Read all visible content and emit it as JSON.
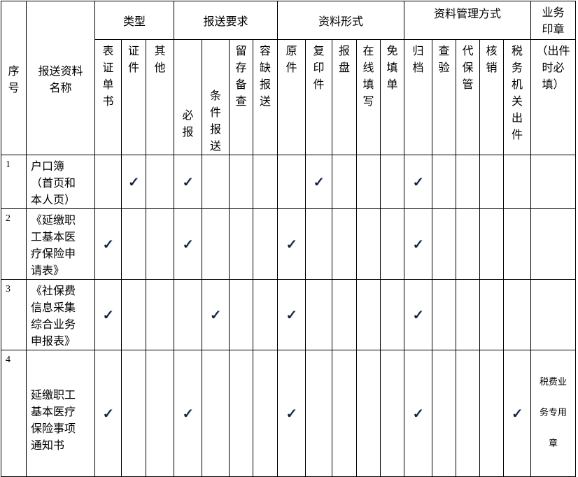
{
  "header": {
    "seq": "序号",
    "name": "报送资料名称",
    "groups": [
      "类型",
      "报送要求",
      "资料形式",
      "资料管理方式"
    ],
    "seal": "业务印章",
    "seal_note": "（出件时必填）",
    "columns": [
      "表证单书",
      "证件",
      "其他",
      "必报",
      "条件报送",
      "留存备查",
      "容缺报送",
      "原件",
      "复印件",
      "报盘",
      "在线填写",
      "免填单",
      "归档",
      "查验",
      "代保管",
      "核销",
      "税务机关出件"
    ]
  },
  "check_mark": "✓",
  "rows": [
    {
      "seq": "1",
      "name": "户口簿\n（首页和\n本人页）",
      "checks": [
        1,
        3,
        8,
        12
      ],
      "seal": ""
    },
    {
      "seq": "2",
      "name": "《延缴职\n工基本医\n疗保险申\n请表》",
      "checks": [
        0,
        3,
        7,
        12
      ],
      "seal": ""
    },
    {
      "seq": "3",
      "name": "《社保费\n信息采集\n综合业务\n申报表》",
      "checks": [
        0,
        4,
        7,
        12
      ],
      "seal": ""
    },
    {
      "seq": "4",
      "name": "\n\n延缴职工\n基本医疗\n保险事项\n通知书",
      "checks": [
        0,
        3,
        7,
        12,
        16
      ],
      "seal": "税费业务专用章"
    }
  ]
}
